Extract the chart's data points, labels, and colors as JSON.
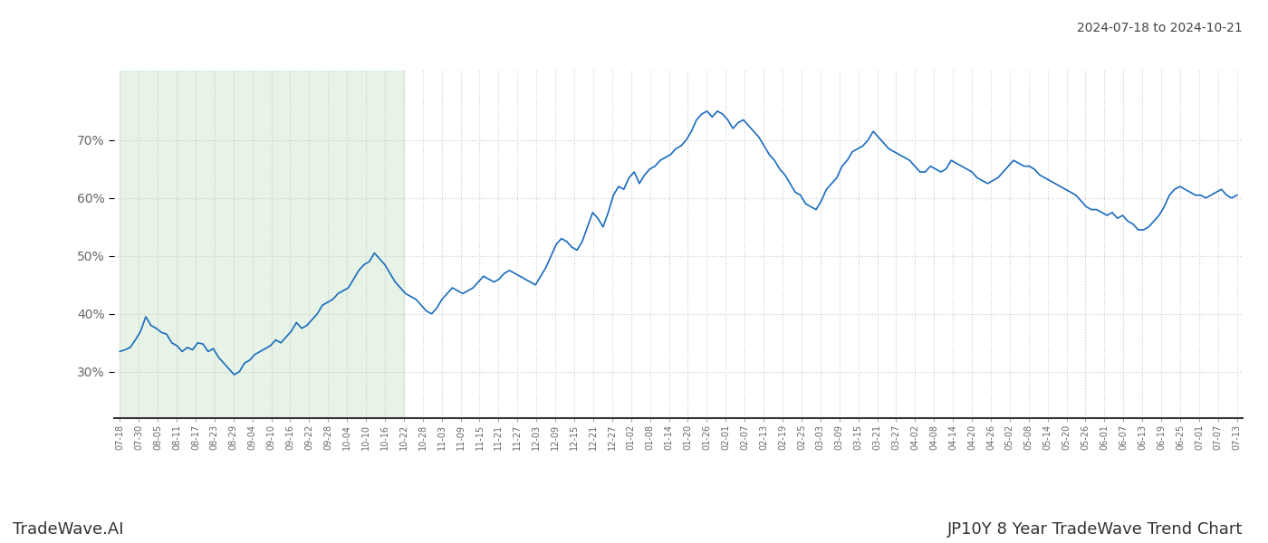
{
  "title_top_right": "2024-07-18 to 2024-10-21",
  "title_bottom_right": "JP10Y 8 Year TradeWave Trend Chart",
  "title_bottom_left": "TradeWave.AI",
  "background_color": "#ffffff",
  "line_color": "#1a6bbd",
  "line_width": 1.2,
  "shade_color": "#c8e6c9",
  "shade_alpha": 0.45,
  "ylim": [
    22,
    82
  ],
  "yticks": [
    30,
    40,
    50,
    60,
    70
  ],
  "x_labels": [
    "07-18",
    "07-30",
    "08-05",
    "08-11",
    "08-17",
    "08-23",
    "08-29",
    "09-04",
    "09-10",
    "09-16",
    "09-22",
    "09-28",
    "10-04",
    "10-10",
    "10-16",
    "10-22",
    "10-28",
    "11-03",
    "11-09",
    "11-15",
    "11-21",
    "11-27",
    "12-03",
    "12-09",
    "12-15",
    "12-21",
    "12-27",
    "01-02",
    "01-08",
    "01-14",
    "01-20",
    "01-26",
    "02-01",
    "02-07",
    "02-13",
    "02-19",
    "02-25",
    "03-03",
    "03-09",
    "03-15",
    "03-21",
    "03-27",
    "04-02",
    "04-08",
    "04-14",
    "04-20",
    "04-26",
    "05-02",
    "05-08",
    "05-14",
    "05-20",
    "05-26",
    "06-01",
    "06-07",
    "06-13",
    "06-19",
    "06-25",
    "07-01",
    "07-07",
    "07-13"
  ],
  "shade_start_label": "07-18",
  "shade_end_label": "10-22",
  "values": [
    33.5,
    33.8,
    34.2,
    35.5,
    37.0,
    39.5,
    38.0,
    37.5,
    36.8,
    36.5,
    35.0,
    34.5,
    33.5,
    34.2,
    33.8,
    35.0,
    34.8,
    33.5,
    34.0,
    32.5,
    31.5,
    30.5,
    29.5,
    30.0,
    31.5,
    32.0,
    33.0,
    33.5,
    34.0,
    34.5,
    35.5,
    35.0,
    36.0,
    37.0,
    38.5,
    37.5,
    38.0,
    39.0,
    40.0,
    41.5,
    42.0,
    42.5,
    43.5,
    44.0,
    44.5,
    46.0,
    47.5,
    48.5,
    49.0,
    50.5,
    49.5,
    48.5,
    47.0,
    45.5,
    44.5,
    43.5,
    43.0,
    42.5,
    41.5,
    40.5,
    40.0,
    41.0,
    42.5,
    43.5,
    44.5,
    44.0,
    43.5,
    44.0,
    44.5,
    45.5,
    46.5,
    46.0,
    45.5,
    46.0,
    47.0,
    47.5,
    47.0,
    46.5,
    46.0,
    45.5,
    45.0,
    46.5,
    48.0,
    50.0,
    52.0,
    53.0,
    52.5,
    51.5,
    51.0,
    52.5,
    55.0,
    57.5,
    56.5,
    55.0,
    57.5,
    60.5,
    62.0,
    61.5,
    63.5,
    64.5,
    62.5,
    64.0,
    65.0,
    65.5,
    66.5,
    67.0,
    67.5,
    68.5,
    69.0,
    70.0,
    71.5,
    73.5,
    74.5,
    75.0,
    74.0,
    75.0,
    74.5,
    73.5,
    72.0,
    73.0,
    73.5,
    72.5,
    71.5,
    70.5,
    69.0,
    67.5,
    66.5,
    65.0,
    64.0,
    62.5,
    61.0,
    60.5,
    59.0,
    58.5,
    58.0,
    59.5,
    61.5,
    62.5,
    63.5,
    65.5,
    66.5,
    68.0,
    68.5,
    69.0,
    70.0,
    71.5,
    70.5,
    69.5,
    68.5,
    68.0,
    67.5,
    67.0,
    66.5,
    65.5,
    64.5,
    64.5,
    65.5,
    65.0,
    64.5,
    65.0,
    66.5,
    66.0,
    65.5,
    65.0,
    64.5,
    63.5,
    63.0,
    62.5,
    63.0,
    63.5,
    64.5,
    65.5,
    66.5,
    66.0,
    65.5,
    65.5,
    65.0,
    64.0,
    63.5,
    63.0,
    62.5,
    62.0,
    61.5,
    61.0,
    60.5,
    59.5,
    58.5,
    58.0,
    58.0,
    57.5,
    57.0,
    57.5,
    56.5,
    57.0,
    56.0,
    55.5,
    54.5,
    54.5,
    55.0,
    56.0,
    57.0,
    58.5,
    60.5,
    61.5,
    62.0,
    61.5,
    61.0,
    60.5,
    60.5,
    60.0,
    60.5,
    61.0,
    61.5,
    60.5,
    60.0,
    60.5
  ],
  "grid_color": "#cccccc",
  "grid_style": "dotted",
  "font_color": "#666666"
}
